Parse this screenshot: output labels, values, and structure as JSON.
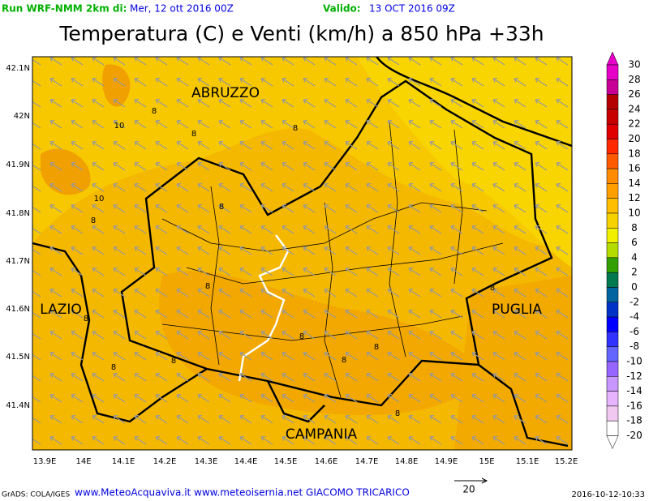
{
  "header": {
    "run_label": "Run WRF-NMM 2km di:",
    "run_date": "Mer, 12 ott 2016 00Z",
    "valid_label": "Valido:",
    "valid_date": "13 OCT 2016 09Z",
    "title": "Temperatura (C) e Venti (km/h) a 850 hPa +33h"
  },
  "lat_labels": [
    "42.1N",
    "42N",
    "41.9N",
    "41.8N",
    "41.7N",
    "41.6N",
    "41.5N",
    "41.4N"
  ],
  "lon_labels": [
    "13.9E",
    "14E",
    "14.1E",
    "14.2E",
    "14.3E",
    "14.4E",
    "14.5E",
    "14.6E",
    "14.7E",
    "14.8E",
    "14.9E",
    "15E",
    "15.1E",
    "15.2E"
  ],
  "regions": [
    "ABRUZZO",
    "LAZIO",
    "PUGLIA",
    "CAMPANIA"
  ],
  "contour_labels": [
    "8",
    "10",
    "8",
    "8",
    "10",
    "8",
    "8",
    "8",
    "8",
    "8",
    "8",
    "8",
    "8",
    "8",
    "8",
    "8"
  ],
  "colorbar": {
    "labels": [
      "30",
      "28",
      "26",
      "24",
      "22",
      "20",
      "18",
      "16",
      "14",
      "12",
      "10",
      "8",
      "6",
      "4",
      "2",
      "0",
      "-2",
      "-4",
      "-6",
      "-8",
      "-10",
      "-12",
      "-14",
      "-16",
      "-18",
      "-20"
    ],
    "colors": [
      "#e600c8",
      "#c80096",
      "#b40000",
      "#c80000",
      "#e10000",
      "#ff2800",
      "#ff5a00",
      "#ff8c00",
      "#ffa000",
      "#ffbe00",
      "#f5d200",
      "#f0f000",
      "#b4dc00",
      "#32a000",
      "#007850",
      "#0064a0",
      "#0032c8",
      "#0000ff",
      "#3232ff",
      "#6464ff",
      "#9664ff",
      "#c896ff",
      "#e6b4ff",
      "#f0c8f0",
      "#ffffff"
    ]
  },
  "footer": {
    "grads": "GrADS: COLA/IGES",
    "credits": "www.MeteoAcquaviva.it www.meteoisernia.net GIACOMO TRICARICO",
    "vector_scale": "20",
    "timestamp": "2016-10-12-10:33"
  }
}
